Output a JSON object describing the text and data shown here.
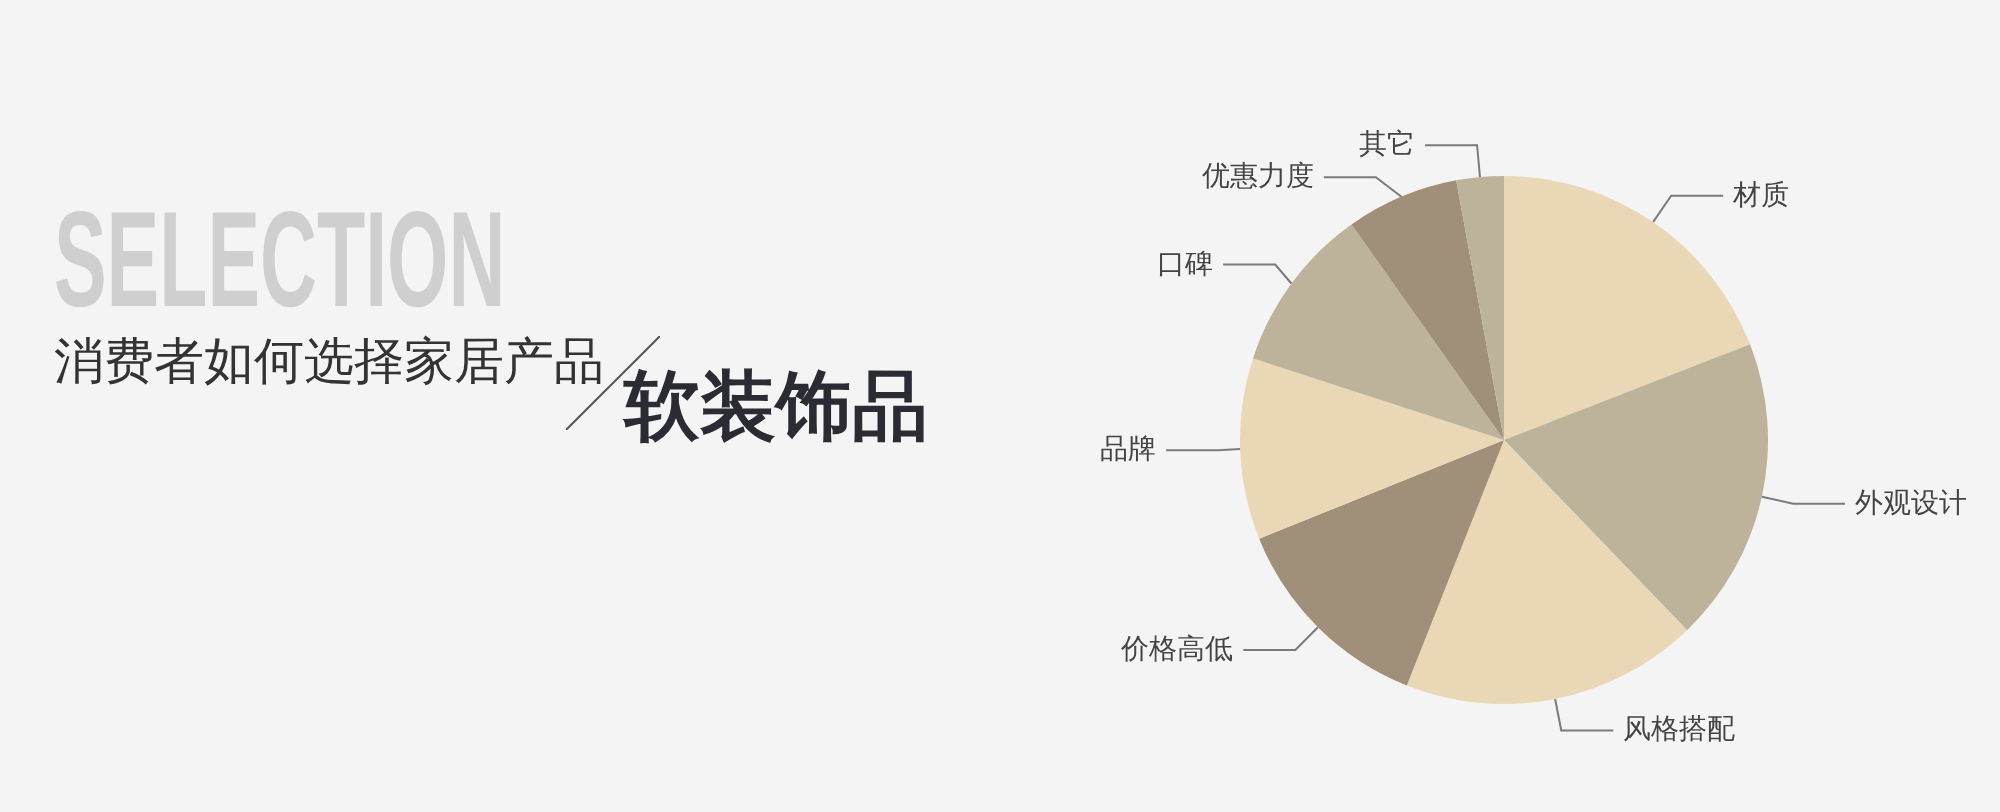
{
  "chart_data": {
    "type": "pie",
    "title": "软装饰品",
    "subtitle": "消费者如何选择家居产品",
    "annotations": [
      "SELECTION"
    ],
    "categories": [
      "材质",
      "外观设计",
      "风格搭配",
      "价格高低",
      "品牌",
      "口碑",
      "优惠力度",
      "其它"
    ],
    "values": [
      19.1,
      18.7,
      18.2,
      12.9,
      11.1,
      10.2,
      6.9,
      2.9
    ],
    "colors": [
      "#ead7b5",
      "#bdb29a",
      "#ead7b5",
      "#a0907a",
      "#ead7b5",
      "#bdb29a",
      "#a0907a",
      "#bdb29a"
    ]
  }
}
